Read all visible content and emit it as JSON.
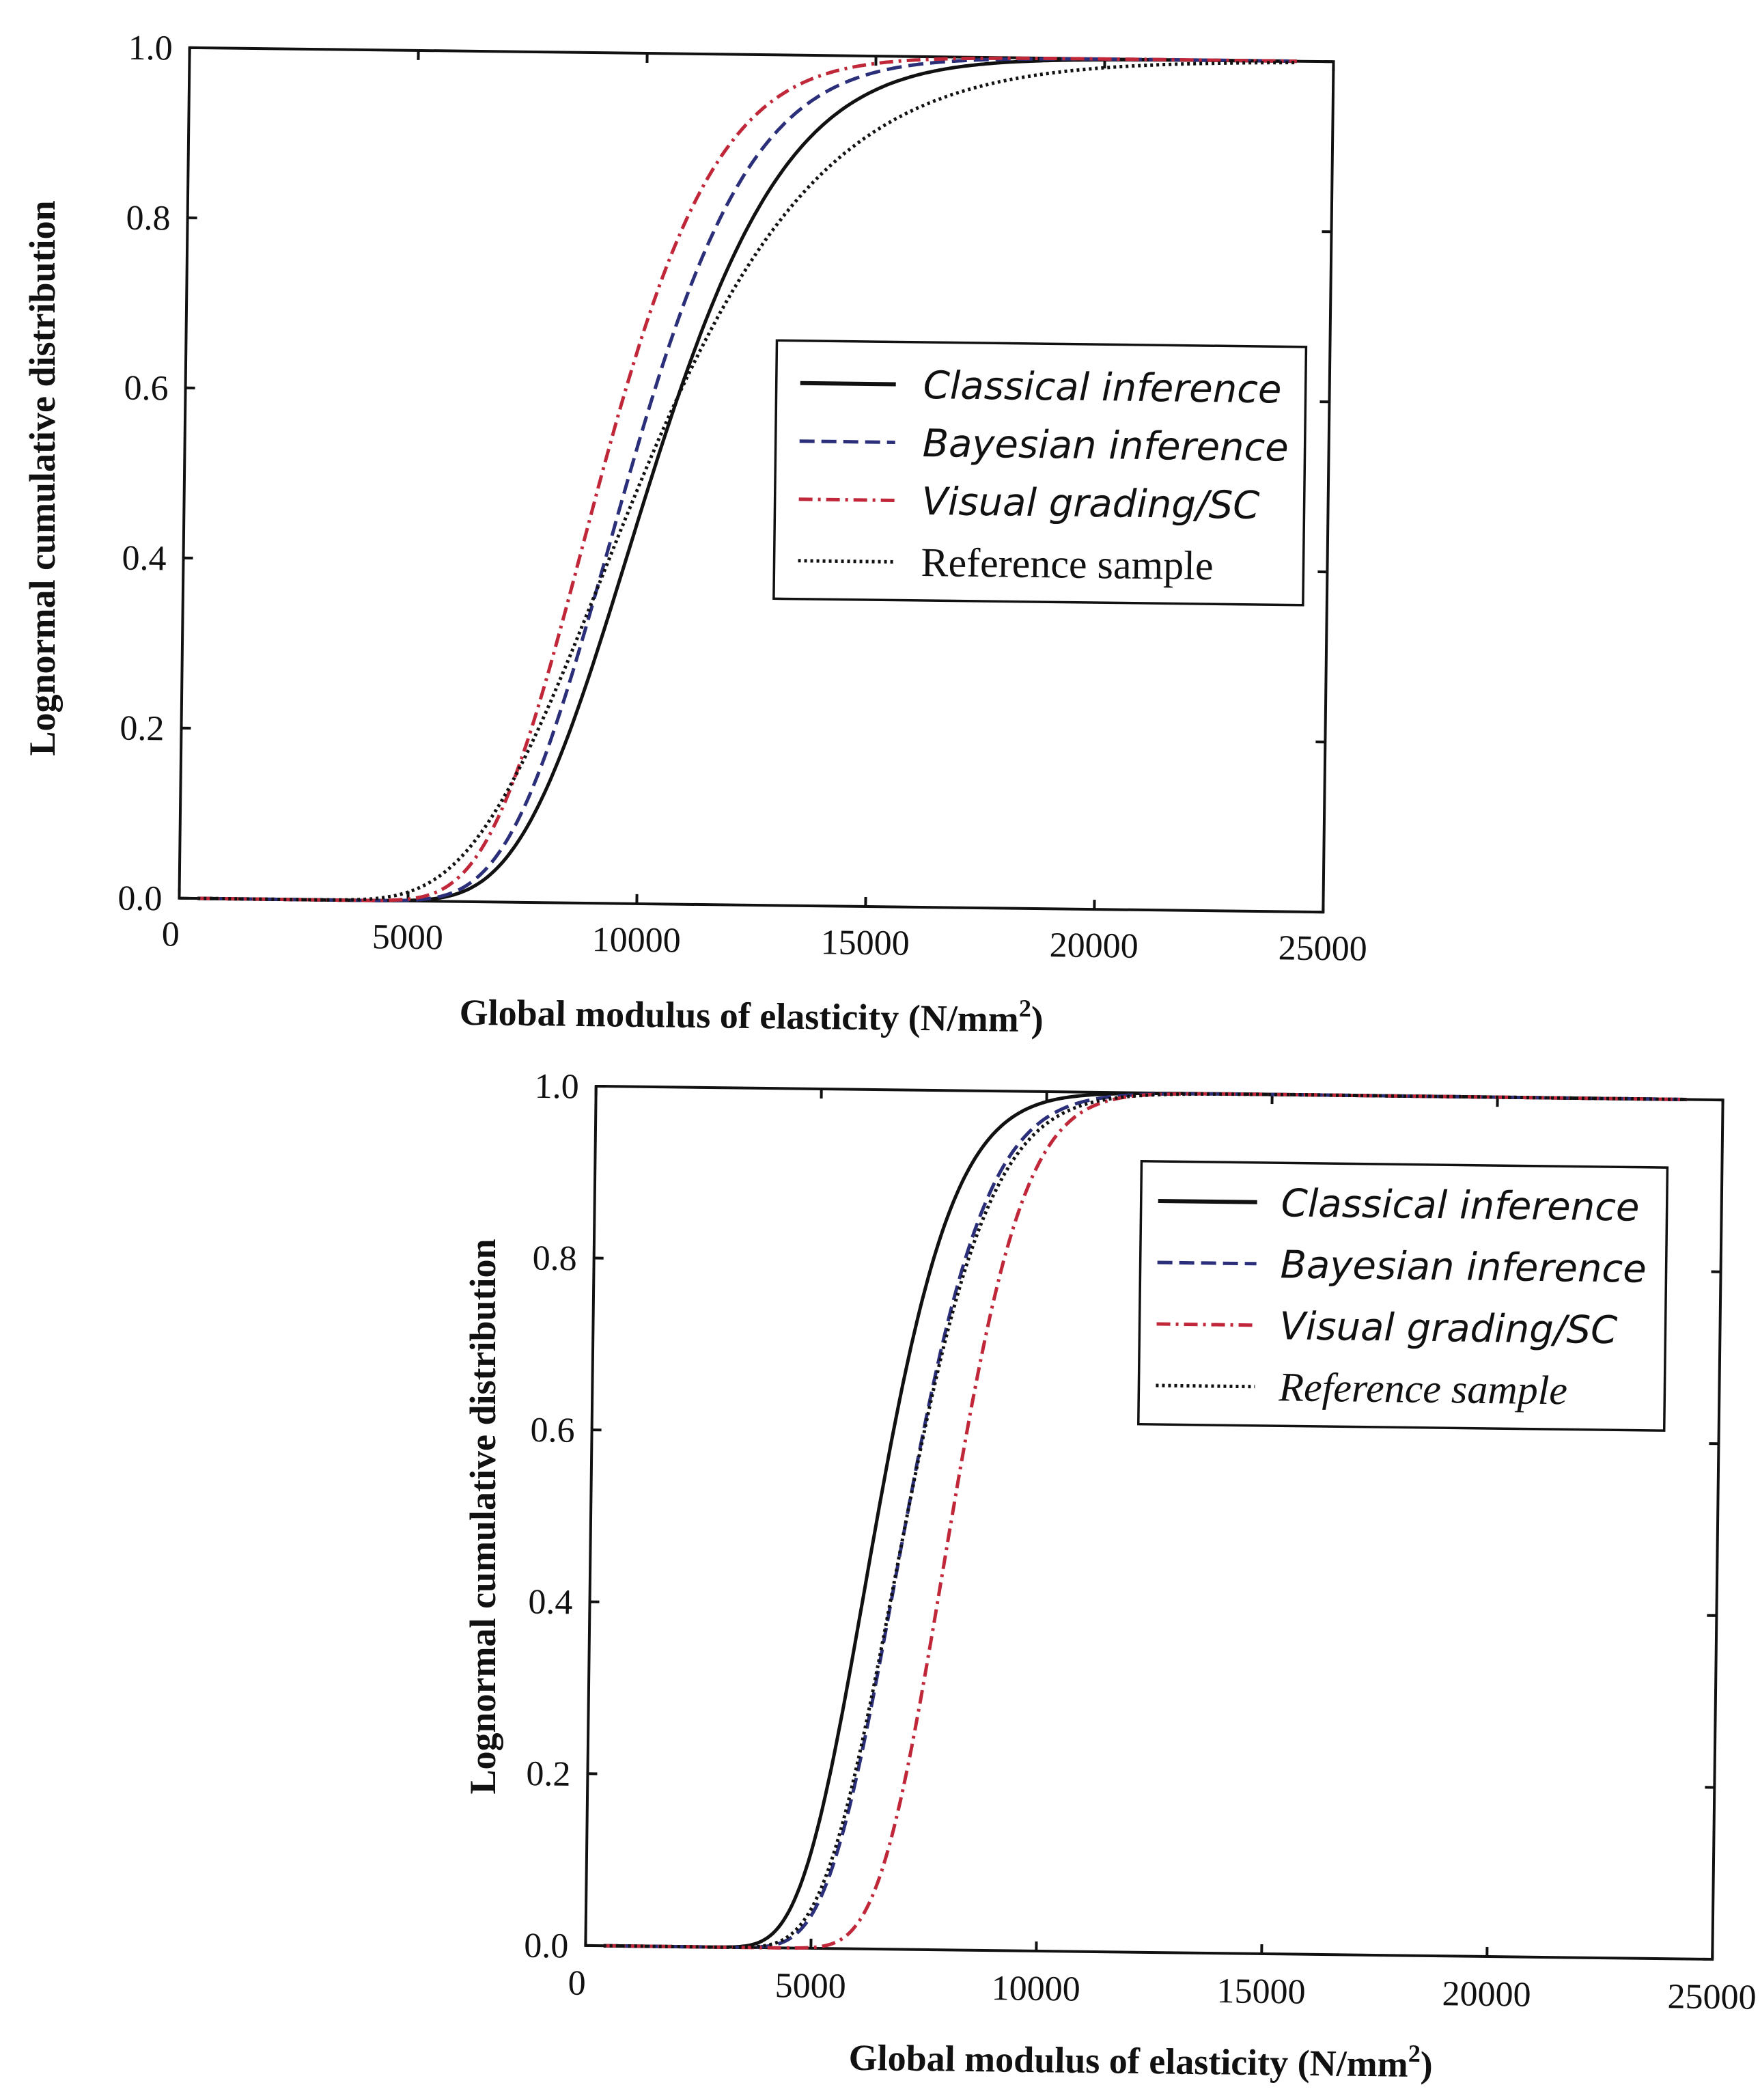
{
  "chart_data": [
    {
      "type": "line",
      "title": "",
      "xlabel": "Global modulus of elasticity (N/mm²)",
      "xlabel_main": "Global modulus of elasticity (N/mm",
      "xlabel_sup": "2",
      "xlabel_close": ")",
      "ylabel": "Lognormal cumulative distribution",
      "xlim": [
        0,
        25000
      ],
      "ylim": [
        0,
        1
      ],
      "grid": false,
      "legend_position": "center-right",
      "legend_style": "upright-serif reference label",
      "x_tick_labels": [
        "0",
        "5000",
        "10000",
        "15000",
        "20000",
        "25000"
      ],
      "y_tick_labels": [
        "0.0",
        "0.2",
        "0.4",
        "0.6",
        "0.8",
        "1.0"
      ],
      "series": [
        {
          "name": "Classical inference",
          "color": "#111111",
          "dash": "solid",
          "median": 10200,
          "sigma": 0.22
        },
        {
          "name": "Bayesian inference",
          "color": "#2b2f7a",
          "dash": "dashed",
          "median": 9700,
          "sigma": 0.21
        },
        {
          "name": "Visual grading/SC",
          "color": "#c0283a",
          "dash": "dashdot",
          "median": 9100,
          "sigma": 0.21
        },
        {
          "name": "Reference sample",
          "color": "#111111",
          "dash": "dotted",
          "median": 10000,
          "sigma": 0.3
        }
      ]
    },
    {
      "type": "line",
      "title": "",
      "xlabel": "Global modulus of elasticity (N/mm²)",
      "xlabel_main": "Global modulus of elasticity (N/mm",
      "xlabel_sup": "2",
      "xlabel_close": ")",
      "ylabel": "Lognormal cumulative distribution",
      "xlim": [
        0,
        25000
      ],
      "ylim": [
        0,
        1
      ],
      "grid": false,
      "legend_position": "top-right",
      "legend_style": "italic reference label",
      "x_tick_labels": [
        "0",
        "5000",
        "10000",
        "15000",
        "20000",
        "25000"
      ],
      "y_tick_labels": [
        "0.0",
        "0.2",
        "0.4",
        "0.6",
        "0.8",
        "1.0"
      ],
      "series": [
        {
          "name": "Classical inference",
          "color": "#111111",
          "dash": "solid",
          "median": 6350,
          "sigma": 0.2
        },
        {
          "name": "Bayesian inference",
          "color": "#2b2f7a",
          "dash": "dashed",
          "median": 7000,
          "sigma": 0.19
        },
        {
          "name": "Visual grading/SC",
          "color": "#c0283a",
          "dash": "dashdot",
          "median": 8000,
          "sigma": 0.15
        },
        {
          "name": "Reference sample",
          "color": "#111111",
          "dash": "dotted",
          "median": 7000,
          "sigma": 0.2
        }
      ]
    }
  ]
}
